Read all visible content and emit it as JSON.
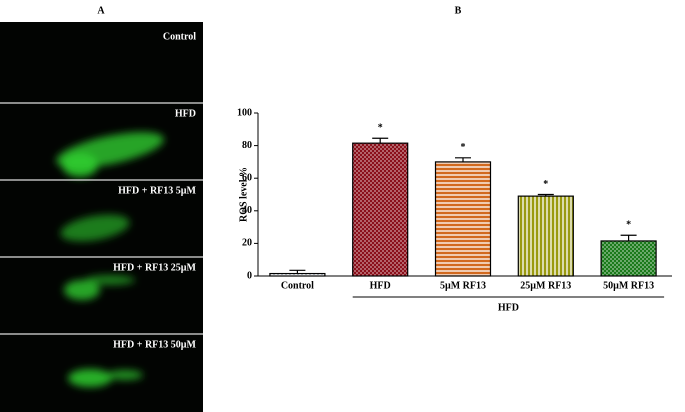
{
  "panel_a": {
    "label": "A",
    "images": [
      "Control",
      "HFD",
      "HFD + RF13 5µM",
      "HFD + RF13 25µM",
      "HFD + RF13 50µM"
    ]
  },
  "chart_data": {
    "type": "bar",
    "panel_label": "B",
    "y_label": "ROS level %",
    "categories": [
      "Control",
      "HFD",
      "5µM RF13",
      "25µM RF13",
      "50µM RF13"
    ],
    "values": [
      1.5,
      81.5,
      70,
      49,
      21.5
    ],
    "errors": [
      2,
      3,
      2.5,
      1,
      3.5
    ],
    "significance_labels": [
      null,
      "*",
      "*",
      "*",
      "*"
    ],
    "colors": [
      "#8a9aaa",
      "#8b0f1a",
      "#d2691e",
      "#9a9a10",
      "#1a7a1a"
    ],
    "patterns": [
      "dots",
      "checker",
      "hlines",
      "vlines",
      "checker"
    ],
    "group_label": "HFD",
    "ylim": [
      0,
      100
    ],
    "yticks": [
      0,
      20,
      40,
      60,
      80,
      100
    ]
  }
}
